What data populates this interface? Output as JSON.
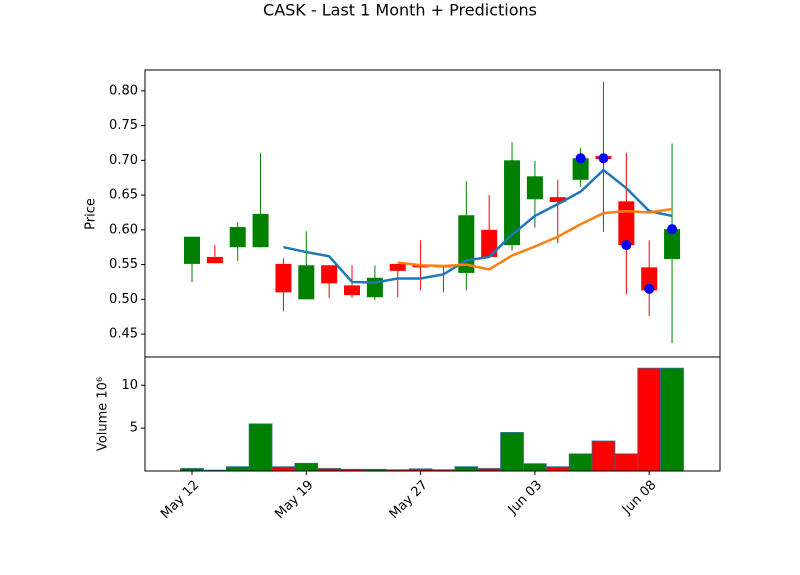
{
  "chart_data": {
    "type": "candlestick",
    "title": "CASK - Last 1 Month + Predictions",
    "ylabel": "Price",
    "categories": [
      "May 12",
      null,
      null,
      null,
      null,
      "May 19",
      null,
      null,
      null,
      null,
      "May 27",
      null,
      null,
      null,
      null,
      "Jun 03",
      null,
      null,
      null,
      null,
      "Jun 08",
      null
    ],
    "open": [
      0.551,
      0.561,
      0.575,
      0.575,
      0.551,
      0.5,
      0.549,
      0.52,
      0.503,
      0.551,
      0.549,
      0.549,
      0.538,
      0.6,
      0.578,
      0.644,
      0.647,
      0.672,
      0.706,
      0.641,
      0.546,
      0.558
    ],
    "high": [
      0.59,
      0.578,
      0.611,
      0.711,
      0.559,
      0.598,
      0.549,
      0.549,
      0.549,
      0.551,
      0.585,
      0.549,
      0.67,
      0.65,
      0.726,
      0.699,
      0.672,
      0.718,
      0.813,
      0.711,
      0.585,
      0.724
    ],
    "low": [
      0.525,
      0.552,
      0.555,
      0.575,
      0.483,
      0.5,
      0.502,
      0.502,
      0.499,
      0.503,
      0.513,
      0.51,
      0.513,
      0.561,
      0.57,
      0.603,
      0.581,
      0.662,
      0.597,
      0.507,
      0.476,
      0.437
    ],
    "close": [
      0.59,
      0.552,
      0.604,
      0.623,
      0.51,
      0.549,
      0.523,
      0.506,
      0.531,
      0.541,
      0.546,
      0.546,
      0.621,
      0.561,
      0.7,
      0.677,
      0.64,
      0.703,
      0.702,
      0.578,
      0.513,
      0.601
    ],
    "up_color": "green",
    "down_color": "red",
    "ylim": [
      0.417,
      0.83
    ],
    "yticks": [
      0.45,
      {
        "value": 0.5,
        "label": "0.50"
      },
      0.55,
      {
        "value": 0.6,
        "label": "0.60"
      },
      0.65,
      {
        "value": 0.7,
        "label": "0.70"
      },
      0.75,
      {
        "value": 0.8,
        "label": "0.80"
      }
    ],
    "lines": [
      {
        "color": "#1f77b4",
        "values": [
          null,
          null,
          null,
          null,
          0.575,
          0.568,
          0.562,
          0.525,
          0.524,
          0.53,
          0.53,
          0.536,
          0.556,
          0.561,
          0.593,
          0.62,
          0.637,
          0.655,
          0.686,
          0.66,
          0.627,
          0.62
        ]
      },
      {
        "color": "#ff7f0e",
        "values": [
          null,
          null,
          null,
          null,
          null,
          null,
          null,
          null,
          null,
          0.553,
          0.549,
          0.548,
          0.55,
          0.543,
          0.563,
          0.576,
          0.59,
          0.608,
          0.624,
          0.627,
          0.625,
          0.63
        ]
      }
    ],
    "markers": {
      "color": "blue",
      "values": [
        null,
        null,
        null,
        null,
        null,
        null,
        null,
        null,
        null,
        null,
        null,
        null,
        null,
        null,
        null,
        null,
        null,
        0.703,
        0.703,
        0.578,
        0.515,
        0.601
      ]
    },
    "volume": {
      "ylabel": "Volume  10⁶",
      "values": [
        0.3,
        0.1,
        0.5,
        5.5,
        0.5,
        0.9,
        0.3,
        0.2,
        0.2,
        0.15,
        0.25,
        0.15,
        0.5,
        0.3,
        4.5,
        0.85,
        0.5,
        2.0,
        3.5,
        2.0,
        12,
        12
      ],
      "ylim": [
        0,
        13.3
      ],
      "yticks": [
        5,
        10
      ]
    }
  }
}
